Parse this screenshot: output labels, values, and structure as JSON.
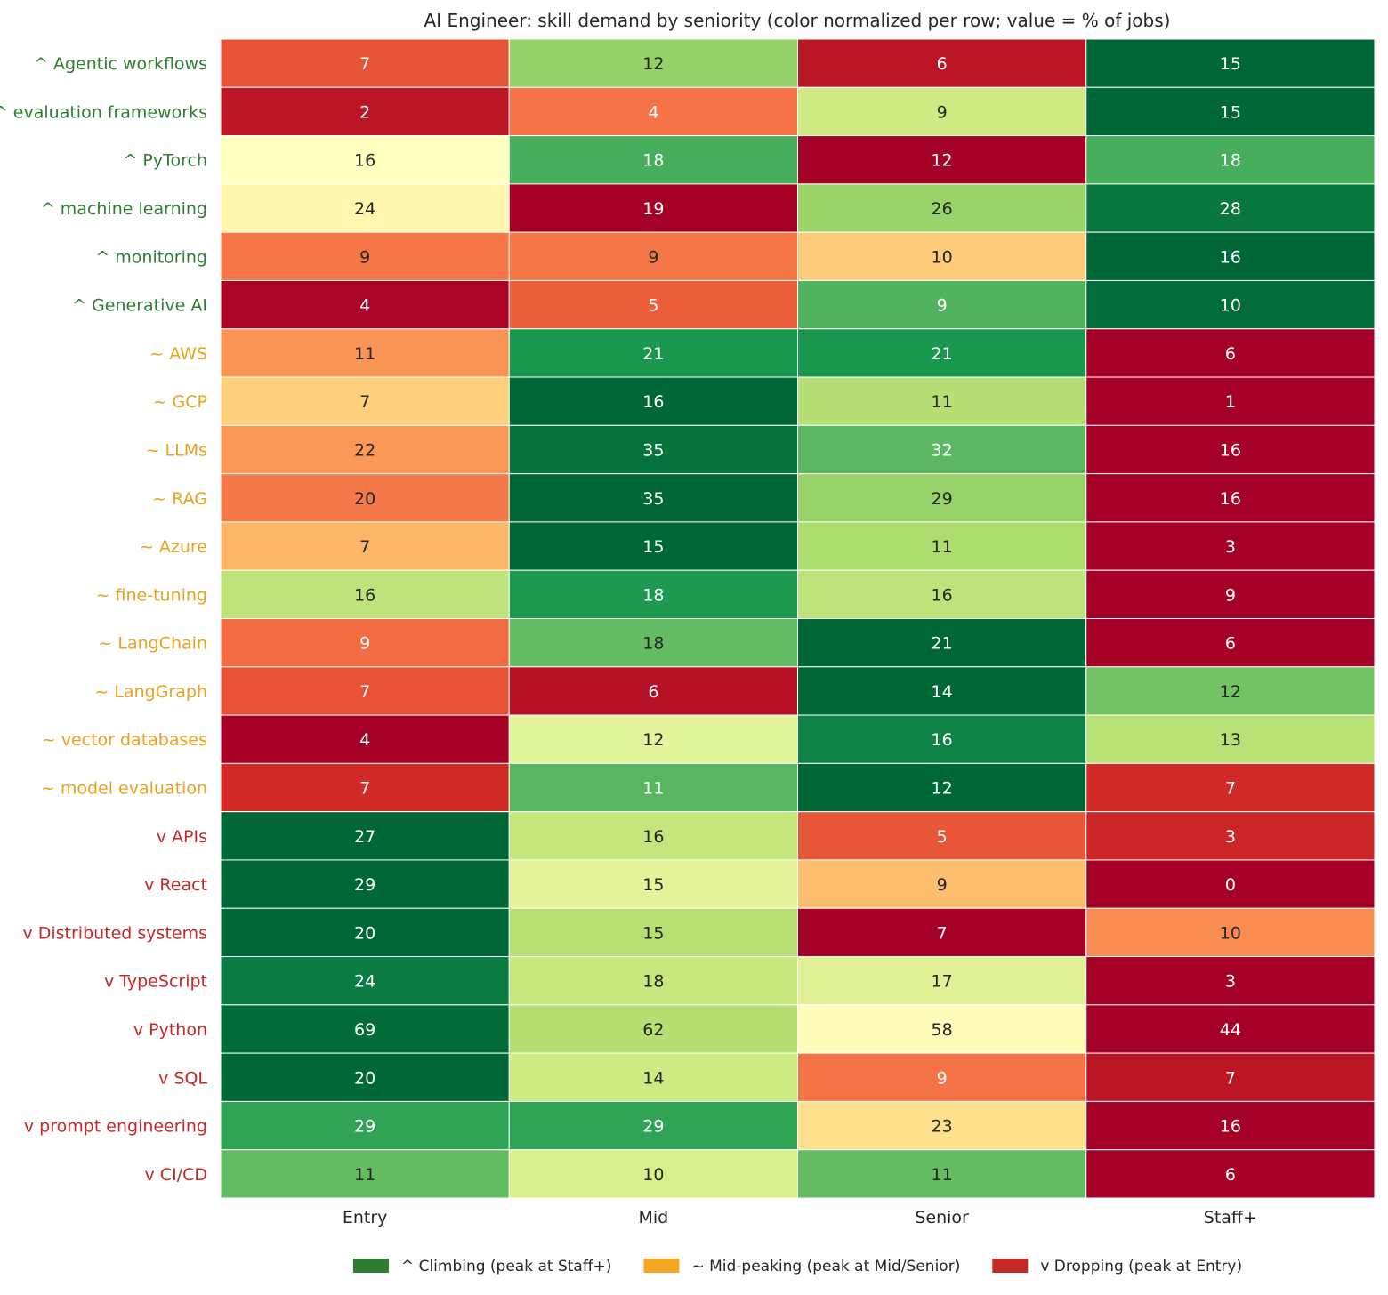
{
  "chart_data": {
    "type": "heatmap",
    "title": "AI Engineer: skill demand by seniority (color normalized per row; value = % of jobs)",
    "columns": [
      "Entry",
      "Mid",
      "Senior",
      "Staff+"
    ],
    "rows": [
      {
        "label": "^  Agentic workflows",
        "group": "climbing",
        "values": [
          7,
          12,
          6,
          15
        ]
      },
      {
        "label": "^  evaluation frameworks",
        "group": "climbing",
        "values": [
          2,
          4,
          9,
          15
        ]
      },
      {
        "label": "^  PyTorch",
        "group": "climbing",
        "values": [
          16,
          18,
          12,
          18
        ]
      },
      {
        "label": "^  machine learning",
        "group": "climbing",
        "values": [
          24,
          19,
          26,
          28
        ]
      },
      {
        "label": "^  monitoring",
        "group": "climbing",
        "values": [
          9,
          9,
          10,
          16
        ]
      },
      {
        "label": "^  Generative AI",
        "group": "climbing",
        "values": [
          4,
          5,
          9,
          10
        ]
      },
      {
        "label": "~  AWS",
        "group": "mid",
        "values": [
          11,
          21,
          21,
          6
        ]
      },
      {
        "label": "~  GCP",
        "group": "mid",
        "values": [
          7,
          16,
          11,
          1
        ]
      },
      {
        "label": "~  LLMs",
        "group": "mid",
        "values": [
          22,
          35,
          32,
          16
        ]
      },
      {
        "label": "~  RAG",
        "group": "mid",
        "values": [
          20,
          35,
          29,
          16
        ]
      },
      {
        "label": "~  Azure",
        "group": "mid",
        "values": [
          7,
          15,
          11,
          3
        ]
      },
      {
        "label": "~  fine-tuning",
        "group": "mid",
        "values": [
          16,
          18,
          16,
          9
        ]
      },
      {
        "label": "~  LangChain",
        "group": "mid",
        "values": [
          9,
          18,
          21,
          6
        ]
      },
      {
        "label": "~  LangGraph",
        "group": "mid",
        "values": [
          7,
          6,
          14,
          12
        ]
      },
      {
        "label": "~  vector databases",
        "group": "mid",
        "values": [
          4,
          12,
          16,
          13
        ]
      },
      {
        "label": "~  model evaluation",
        "group": "mid",
        "values": [
          7,
          11,
          12,
          7
        ]
      },
      {
        "label": "v  APIs",
        "group": "dropping",
        "values": [
          27,
          16,
          5,
          3
        ]
      },
      {
        "label": "v  React",
        "group": "dropping",
        "values": [
          29,
          15,
          9,
          0
        ]
      },
      {
        "label": "v  Distributed systems",
        "group": "dropping",
        "values": [
          20,
          15,
          7,
          10
        ]
      },
      {
        "label": "v  TypeScript",
        "group": "dropping",
        "values": [
          24,
          18,
          17,
          3
        ]
      },
      {
        "label": "v  Python",
        "group": "dropping",
        "values": [
          69,
          62,
          58,
          44
        ]
      },
      {
        "label": "v  SQL",
        "group": "dropping",
        "values": [
          20,
          14,
          9,
          7
        ]
      },
      {
        "label": "v  prompt engineering",
        "group": "dropping",
        "values": [
          29,
          29,
          23,
          16
        ]
      },
      {
        "label": "v  CI/CD",
        "group": "dropping",
        "values": [
          11,
          10,
          11,
          6
        ]
      }
    ],
    "colormap": "RdYlGn",
    "legend": {
      "placement": "bottom-center",
      "entries": [
        {
          "group": "climbing",
          "label": "^  Climbing (peak at Staff+)",
          "color": "#2e7d32"
        },
        {
          "group": "mid",
          "label": "~  Mid-peaking (peak at Mid/Senior)",
          "color": "#f5a623"
        },
        {
          "group": "dropping",
          "label": "v  Dropping (peak at Entry)",
          "color": "#c62828"
        }
      ]
    },
    "group_label_colors": {
      "climbing": "#2e7d32",
      "mid": "#e8a21c",
      "dropping": "#c62828"
    }
  }
}
